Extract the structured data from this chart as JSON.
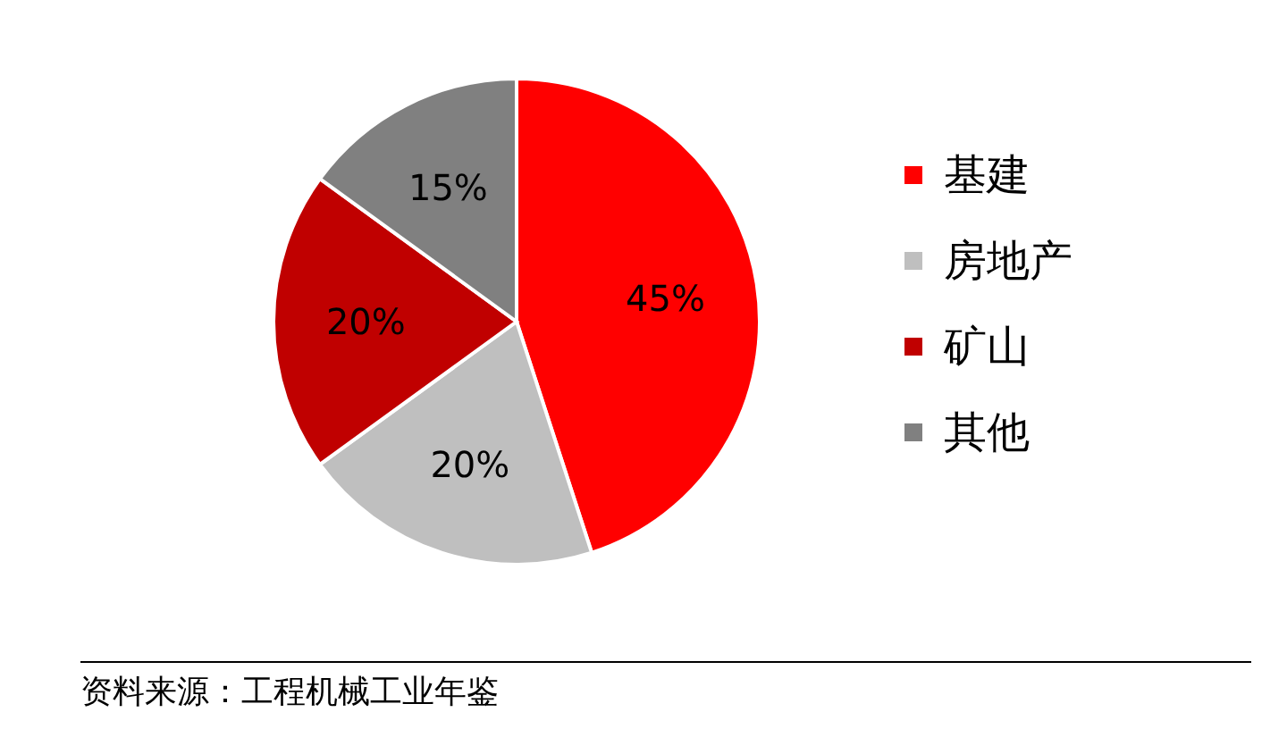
{
  "chart_data": {
    "type": "pie",
    "categories": [
      "基建",
      "房地产",
      "矿山",
      "其他"
    ],
    "values": [
      45,
      20,
      20,
      15
    ],
    "colors": [
      "#ff0000",
      "#bfbfbf",
      "#c00000",
      "#808080"
    ],
    "value_labels": [
      "45%",
      "20%",
      "20%",
      "15%"
    ],
    "legend": "right",
    "annotations": [
      "资料来源：工程机械工业年鉴"
    ]
  }
}
